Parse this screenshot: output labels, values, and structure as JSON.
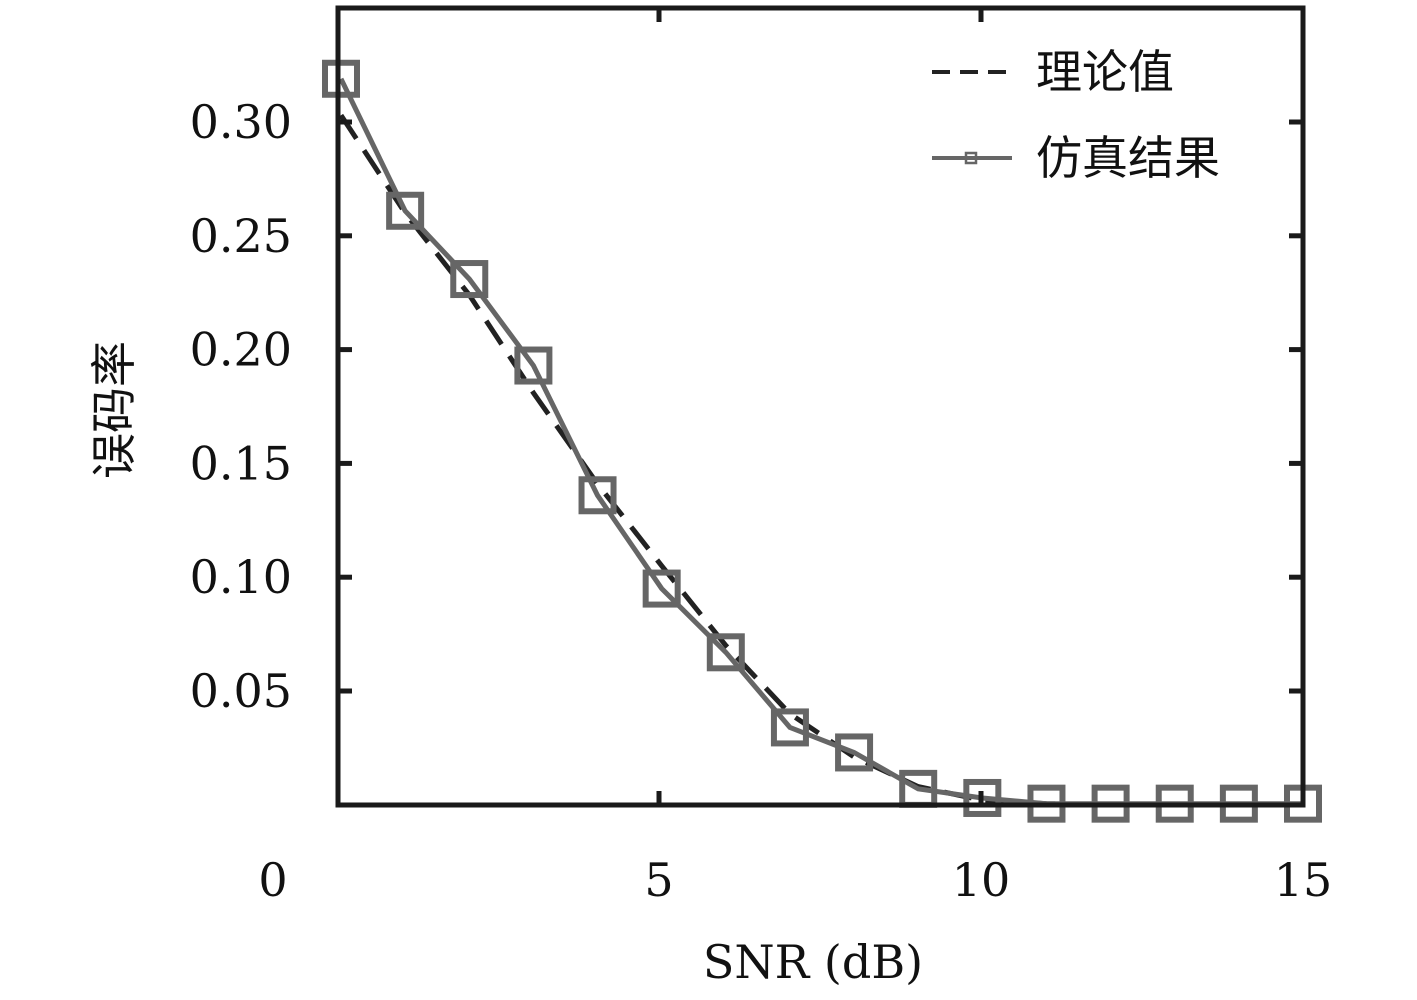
{
  "chart_data": {
    "type": "line",
    "xlabel": "SNR (dB)",
    "ylabel": "误码率",
    "xlim": [
      0,
      15
    ],
    "ylim": [
      0,
      0.35
    ],
    "xticks": [
      0,
      5,
      10,
      15
    ],
    "xtick_labels": [
      "0",
      "5",
      "10",
      "15"
    ],
    "yticks": [
      0.05,
      0.1,
      0.15,
      0.2,
      0.25,
      0.3
    ],
    "ytick_labels": [
      "0.05",
      "0.10",
      "0.15",
      "0.20",
      "0.25",
      "0.30"
    ],
    "grid": false,
    "legend_position": "top-right",
    "series": [
      {
        "name": "理论值",
        "style": "dashed",
        "color": "#222222",
        "x": [
          0,
          1,
          2,
          3,
          4,
          5,
          6,
          7,
          8,
          9,
          10,
          11,
          12,
          13,
          14,
          15
        ],
        "y": [
          0.303,
          0.26,
          0.224,
          0.181,
          0.141,
          0.105,
          0.07,
          0.04,
          0.021,
          0.008,
          0.002,
          0.0005,
          0.0001,
          0.0,
          0.0,
          0.0
        ]
      },
      {
        "name": "仿真结果",
        "style": "solid",
        "marker": "square",
        "color": "#666666",
        "x": [
          0,
          1,
          2,
          3,
          4,
          5,
          6,
          7,
          8,
          9,
          10,
          11,
          12,
          13,
          14,
          15
        ],
        "y": [
          0.319,
          0.261,
          0.231,
          0.193,
          0.136,
          0.095,
          0.067,
          0.034,
          0.023,
          0.007,
          0.003,
          0.0005,
          0.0005,
          0.0005,
          0.0005,
          0.0005
        ]
      }
    ]
  }
}
